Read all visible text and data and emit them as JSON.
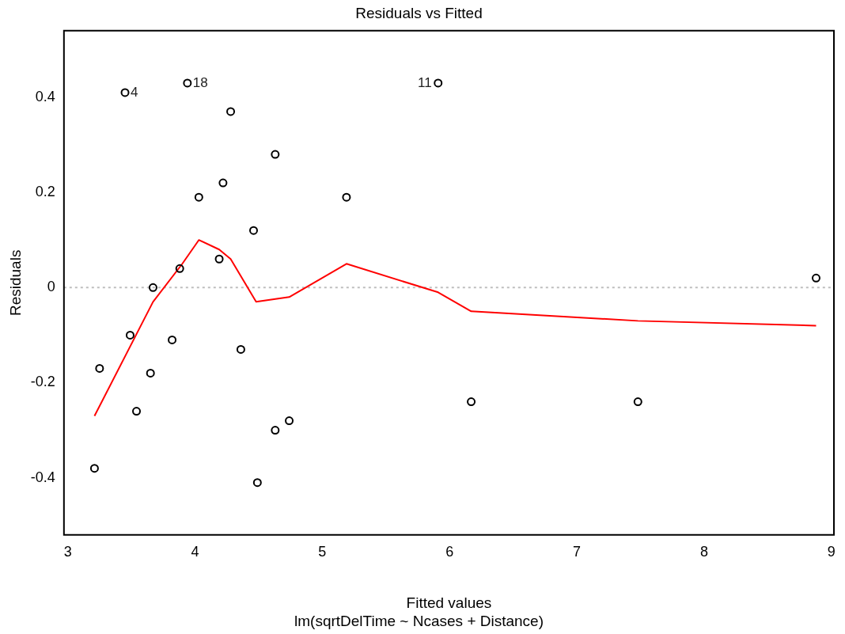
{
  "chart_data": {
    "type": "scatter",
    "title": "Residuals vs Fitted",
    "subtitle": "lm(sqrtDelTime ~ Ncases + Distance)",
    "xlabel": "Fitted values",
    "ylabel": "Residuals",
    "xlim": [
      2.97,
      9.02
    ],
    "xticks": [
      3,
      4,
      5,
      6,
      7,
      8,
      9
    ],
    "ylim": [
      -0.52,
      0.54
    ],
    "yticks": [
      -0.4,
      -0.2,
      0.0,
      0.2,
      0.4
    ],
    "grid": false,
    "legend": false,
    "series": [
      {
        "marker": "circle",
        "color": "#000000",
        "x": [
          3.45,
          3.94,
          5.91,
          4.28,
          4.63,
          5.19,
          4.03,
          4.22,
          4.46,
          4.19,
          3.88,
          3.67,
          8.88,
          3.49,
          3.82,
          4.36,
          3.25,
          3.65,
          3.54,
          6.17,
          7.48,
          4.63,
          4.74,
          3.21,
          4.49
        ],
        "values": [
          0.41,
          0.43,
          0.43,
          0.37,
          0.28,
          0.19,
          0.19,
          0.22,
          0.12,
          0.06,
          0.04,
          0.0,
          0.02,
          -0.1,
          -0.11,
          -0.13,
          -0.17,
          -0.18,
          -0.26,
          -0.24,
          -0.24,
          -0.3,
          -0.28,
          -0.38,
          -0.41
        ]
      },
      {
        "type": "line",
        "color": "#ff0000",
        "x": [
          3.21,
          3.67,
          3.9,
          4.03,
          4.19,
          4.28,
          4.48,
          4.74,
          5.19,
          5.91,
          6.17,
          7.48,
          8.88
        ],
        "values": [
          -0.27,
          -0.03,
          0.05,
          0.1,
          0.08,
          0.06,
          -0.03,
          -0.02,
          0.05,
          -0.01,
          -0.05,
          -0.07,
          -0.08
        ]
      }
    ],
    "ref_lines": [
      {
        "axis": "y",
        "value": 0,
        "color": "#bebebe",
        "line_style": "dotted"
      }
    ],
    "annotations": [
      {
        "text": "4",
        "x": 3.45,
        "y": 0.41
      },
      {
        "text": "18",
        "x": 3.94,
        "y": 0.43
      },
      {
        "text": "11",
        "x": 5.91,
        "y": 0.43
      }
    ]
  }
}
